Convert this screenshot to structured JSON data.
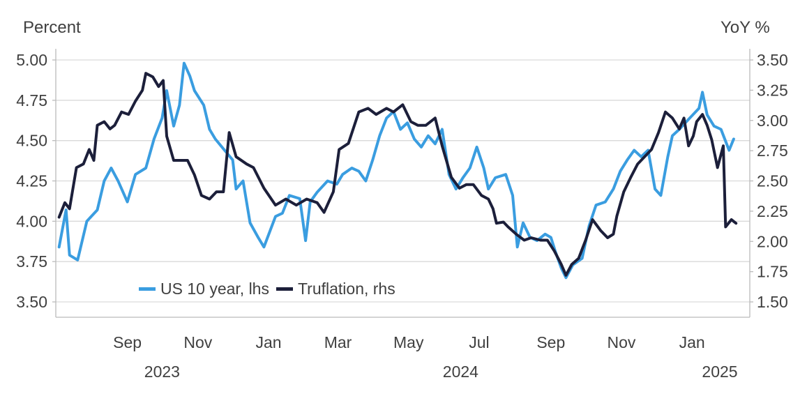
{
  "chart_data": {
    "type": "line",
    "title": "",
    "ylabel_left": "Percent",
    "ylabel_right": "YoY %",
    "ylim_left": [
      3.5,
      5.0
    ],
    "ylim_right": [
      1.5,
      3.5
    ],
    "yticks_left": [
      "3.50",
      "3.75",
      "4.00",
      "4.25",
      "4.50",
      "4.75",
      "5.00"
    ],
    "yticks_right": [
      "1.50",
      "1.75",
      "2.00",
      "2.25",
      "2.50",
      "2.75",
      "3.00",
      "3.25",
      "3.50"
    ],
    "xlim": [
      "2023-07-01",
      "2025-02-20"
    ],
    "xticks": [
      {
        "date": "2023-09-01",
        "label": "Sep"
      },
      {
        "date": "2023-11-01",
        "label": "Nov"
      },
      {
        "date": "2024-01-01",
        "label": "Jan"
      },
      {
        "date": "2024-03-01",
        "label": "Mar"
      },
      {
        "date": "2024-05-01",
        "label": "May"
      },
      {
        "date": "2024-07-01",
        "label": "Jul"
      },
      {
        "date": "2024-09-01",
        "label": "Sep"
      },
      {
        "date": "2024-11-01",
        "label": "Nov"
      },
      {
        "date": "2025-01-01",
        "label": "Jan"
      }
    ],
    "year_labels": [
      {
        "date": "2023-10-01",
        "label": "2023"
      },
      {
        "date": "2024-06-15",
        "label": "2024"
      },
      {
        "date": "2025-01-25",
        "label": "2025"
      }
    ],
    "grid": true,
    "legend_position": "bottom-left",
    "series": [
      {
        "name": "US 10 year, lhs",
        "axis": "left",
        "color": "#3a9de0",
        "points": [
          [
            "2023-07-04",
            3.84
          ],
          [
            "2023-07-10",
            4.07
          ],
          [
            "2023-07-13",
            3.79
          ],
          [
            "2023-07-20",
            3.76
          ],
          [
            "2023-07-28",
            4.0
          ],
          [
            "2023-08-06",
            4.07
          ],
          [
            "2023-08-12",
            4.25
          ],
          [
            "2023-08-18",
            4.33
          ],
          [
            "2023-08-24",
            4.25
          ],
          [
            "2023-09-01",
            4.12
          ],
          [
            "2023-09-08",
            4.29
          ],
          [
            "2023-09-17",
            4.33
          ],
          [
            "2023-09-24",
            4.51
          ],
          [
            "2023-10-01",
            4.64
          ],
          [
            "2023-10-05",
            4.81
          ],
          [
            "2023-10-11",
            4.59
          ],
          [
            "2023-10-16",
            4.72
          ],
          [
            "2023-10-20",
            4.98
          ],
          [
            "2023-10-25",
            4.9
          ],
          [
            "2023-10-29",
            4.81
          ],
          [
            "2023-11-06",
            4.72
          ],
          [
            "2023-11-11",
            4.57
          ],
          [
            "2023-11-16",
            4.51
          ],
          [
            "2023-11-24",
            4.44
          ],
          [
            "2023-12-01",
            4.38
          ],
          [
            "2023-12-04",
            4.2
          ],
          [
            "2023-12-10",
            4.25
          ],
          [
            "2023-12-16",
            3.99
          ],
          [
            "2023-12-23",
            3.9
          ],
          [
            "2023-12-28",
            3.84
          ],
          [
            "2024-01-07",
            4.03
          ],
          [
            "2024-01-13",
            4.05
          ],
          [
            "2024-01-19",
            4.16
          ],
          [
            "2024-01-28",
            4.14
          ],
          [
            "2024-02-02",
            3.88
          ],
          [
            "2024-02-06",
            4.12
          ],
          [
            "2024-02-12",
            4.18
          ],
          [
            "2024-02-21",
            4.25
          ],
          [
            "2024-02-29",
            4.23
          ],
          [
            "2024-03-05",
            4.29
          ],
          [
            "2024-03-13",
            4.33
          ],
          [
            "2024-03-19",
            4.31
          ],
          [
            "2024-03-25",
            4.25
          ],
          [
            "2024-03-31",
            4.38
          ],
          [
            "2024-04-06",
            4.53
          ],
          [
            "2024-04-12",
            4.64
          ],
          [
            "2024-04-18",
            4.68
          ],
          [
            "2024-04-24",
            4.57
          ],
          [
            "2024-04-30",
            4.61
          ],
          [
            "2024-05-06",
            4.51
          ],
          [
            "2024-05-12",
            4.46
          ],
          [
            "2024-05-18",
            4.53
          ],
          [
            "2024-05-24",
            4.48
          ],
          [
            "2024-05-30",
            4.57
          ],
          [
            "2024-06-05",
            4.29
          ],
          [
            "2024-06-11",
            4.2
          ],
          [
            "2024-06-17",
            4.27
          ],
          [
            "2024-06-23",
            4.33
          ],
          [
            "2024-06-29",
            4.46
          ],
          [
            "2024-07-05",
            4.33
          ],
          [
            "2024-07-09",
            4.2
          ],
          [
            "2024-07-15",
            4.27
          ],
          [
            "2024-07-24",
            4.29
          ],
          [
            "2024-07-30",
            4.16
          ],
          [
            "2024-08-03",
            3.84
          ],
          [
            "2024-08-08",
            3.99
          ],
          [
            "2024-08-14",
            3.9
          ],
          [
            "2024-08-20",
            3.88
          ],
          [
            "2024-08-27",
            3.92
          ],
          [
            "2024-09-01",
            3.9
          ],
          [
            "2024-09-05",
            3.81
          ],
          [
            "2024-09-10",
            3.71
          ],
          [
            "2024-09-14",
            3.65
          ],
          [
            "2024-09-20",
            3.73
          ],
          [
            "2024-09-28",
            3.77
          ],
          [
            "2024-10-04",
            3.97
          ],
          [
            "2024-10-10",
            4.1
          ],
          [
            "2024-10-18",
            4.12
          ],
          [
            "2024-10-25",
            4.2
          ],
          [
            "2024-10-31",
            4.31
          ],
          [
            "2024-11-06",
            4.38
          ],
          [
            "2024-11-12",
            4.44
          ],
          [
            "2024-11-18",
            4.4
          ],
          [
            "2024-11-24",
            4.44
          ],
          [
            "2024-11-30",
            4.2
          ],
          [
            "2024-12-05",
            4.16
          ],
          [
            "2024-12-11",
            4.4
          ],
          [
            "2024-12-15",
            4.53
          ],
          [
            "2024-12-21",
            4.57
          ],
          [
            "2024-12-30",
            4.64
          ],
          [
            "2025-01-07",
            4.7
          ],
          [
            "2025-01-10",
            4.8
          ],
          [
            "2025-01-14",
            4.66
          ],
          [
            "2025-01-20",
            4.59
          ],
          [
            "2025-01-26",
            4.57
          ],
          [
            "2025-02-02",
            4.44
          ],
          [
            "2025-02-06",
            4.51
          ]
        ]
      },
      {
        "name": "Truflation, rhs",
        "axis": "right",
        "color": "#1c1f3a",
        "points": [
          [
            "2023-07-04",
            2.2
          ],
          [
            "2023-07-09",
            2.32
          ],
          [
            "2023-07-13",
            2.27
          ],
          [
            "2023-07-19",
            2.61
          ],
          [
            "2023-07-25",
            2.64
          ],
          [
            "2023-07-30",
            2.76
          ],
          [
            "2023-08-03",
            2.67
          ],
          [
            "2023-08-06",
            2.96
          ],
          [
            "2023-08-12",
            2.99
          ],
          [
            "2023-08-17",
            2.93
          ],
          [
            "2023-08-21",
            2.96
          ],
          [
            "2023-08-27",
            3.07
          ],
          [
            "2023-09-02",
            3.05
          ],
          [
            "2023-09-08",
            3.16
          ],
          [
            "2023-09-14",
            3.25
          ],
          [
            "2023-09-17",
            3.39
          ],
          [
            "2023-09-23",
            3.36
          ],
          [
            "2023-09-28",
            3.28
          ],
          [
            "2023-10-02",
            3.33
          ],
          [
            "2023-10-05",
            2.87
          ],
          [
            "2023-10-11",
            2.67
          ],
          [
            "2023-10-17",
            2.67
          ],
          [
            "2023-10-23",
            2.67
          ],
          [
            "2023-10-29",
            2.55
          ],
          [
            "2023-11-04",
            2.38
          ],
          [
            "2023-11-11",
            2.35
          ],
          [
            "2023-11-17",
            2.41
          ],
          [
            "2023-11-23",
            2.41
          ],
          [
            "2023-11-28",
            2.9
          ],
          [
            "2023-12-04",
            2.7
          ],
          [
            "2023-12-13",
            2.64
          ],
          [
            "2023-12-19",
            2.61
          ],
          [
            "2023-12-28",
            2.44
          ],
          [
            "2024-01-07",
            2.3
          ],
          [
            "2024-01-16",
            2.35
          ],
          [
            "2024-01-25",
            2.3
          ],
          [
            "2024-02-03",
            2.35
          ],
          [
            "2024-02-12",
            2.32
          ],
          [
            "2024-02-18",
            2.24
          ],
          [
            "2024-02-26",
            2.41
          ],
          [
            "2024-03-02",
            2.76
          ],
          [
            "2024-03-10",
            2.81
          ],
          [
            "2024-03-19",
            3.07
          ],
          [
            "2024-03-27",
            3.1
          ],
          [
            "2024-04-03",
            3.05
          ],
          [
            "2024-04-12",
            3.1
          ],
          [
            "2024-04-18",
            3.07
          ],
          [
            "2024-04-26",
            3.13
          ],
          [
            "2024-05-03",
            2.99
          ],
          [
            "2024-05-09",
            2.96
          ],
          [
            "2024-05-16",
            2.96
          ],
          [
            "2024-05-24",
            3.02
          ],
          [
            "2024-05-30",
            2.79
          ],
          [
            "2024-06-07",
            2.53
          ],
          [
            "2024-06-14",
            2.44
          ],
          [
            "2024-06-20",
            2.47
          ],
          [
            "2024-06-26",
            2.47
          ],
          [
            "2024-07-03",
            2.38
          ],
          [
            "2024-07-09",
            2.35
          ],
          [
            "2024-07-13",
            2.27
          ],
          [
            "2024-07-16",
            2.15
          ],
          [
            "2024-07-22",
            2.16
          ],
          [
            "2024-07-26",
            2.12
          ],
          [
            "2024-08-02",
            2.06
          ],
          [
            "2024-08-09",
            2.01
          ],
          [
            "2024-08-15",
            2.03
          ],
          [
            "2024-08-23",
            2.01
          ],
          [
            "2024-08-29",
            2.01
          ],
          [
            "2024-09-04",
            1.92
          ],
          [
            "2024-09-10",
            1.81
          ],
          [
            "2024-09-14",
            1.72
          ],
          [
            "2024-09-19",
            1.81
          ],
          [
            "2024-09-25",
            1.86
          ],
          [
            "2024-10-01",
            2.01
          ],
          [
            "2024-10-07",
            2.18
          ],
          [
            "2024-10-14",
            2.09
          ],
          [
            "2024-10-20",
            2.03
          ],
          [
            "2024-10-25",
            2.06
          ],
          [
            "2024-10-28",
            2.21
          ],
          [
            "2024-11-03",
            2.41
          ],
          [
            "2024-11-09",
            2.53
          ],
          [
            "2024-11-15",
            2.64
          ],
          [
            "2024-11-21",
            2.7
          ],
          [
            "2024-11-27",
            2.76
          ],
          [
            "2024-12-03",
            2.9
          ],
          [
            "2024-12-09",
            3.07
          ],
          [
            "2024-12-15",
            3.02
          ],
          [
            "2024-12-21",
            2.93
          ],
          [
            "2024-12-25",
            3.02
          ],
          [
            "2024-12-29",
            2.79
          ],
          [
            "2025-01-02",
            2.87
          ],
          [
            "2025-01-05",
            2.99
          ],
          [
            "2025-01-10",
            3.05
          ],
          [
            "2025-01-14",
            2.96
          ],
          [
            "2025-01-18",
            2.84
          ],
          [
            "2025-01-23",
            2.61
          ],
          [
            "2025-01-28",
            2.79
          ],
          [
            "2025-01-30",
            2.12
          ],
          [
            "2025-02-04",
            2.18
          ],
          [
            "2025-02-08",
            2.15
          ]
        ]
      }
    ]
  }
}
